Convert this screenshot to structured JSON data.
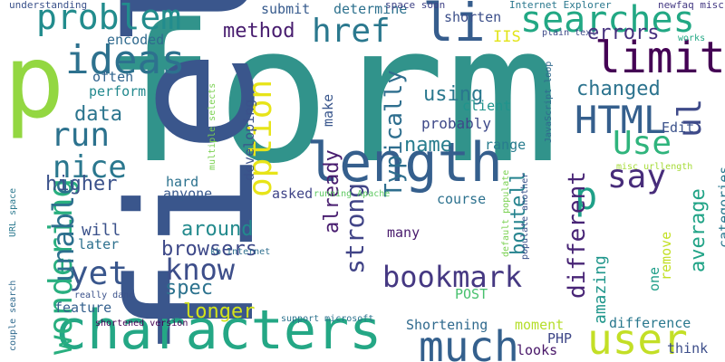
{
  "words": [
    {
      "text": "form",
      "color": "#31938b"
    },
    {
      "text": "field",
      "color": "#3a568c"
    },
    {
      "text": "p",
      "color": "#93d741"
    },
    {
      "text": "characters",
      "color": "#24a785"
    },
    {
      "text": "length",
      "color": "#355f8d"
    },
    {
      "text": "li",
      "color": "#365d8d"
    },
    {
      "text": "searches",
      "color": "#22a884"
    },
    {
      "text": "problem",
      "color": "#228c8d"
    },
    {
      "text": "limit",
      "color": "#440154"
    },
    {
      "text": "ideas",
      "color": "#2d718e"
    },
    {
      "text": "user",
      "color": "#c3df26"
    },
    {
      "text": "much",
      "color": "#34608d"
    },
    {
      "text": "HTML",
      "color": "#355f8d"
    },
    {
      "text": "p",
      "color": "#1fa088"
    },
    {
      "text": "say",
      "color": "#472c7a"
    },
    {
      "text": "href",
      "color": "#2a788e"
    },
    {
      "text": "yet",
      "color": "#39568c"
    },
    {
      "text": "run",
      "color": "#2c728e"
    },
    {
      "text": "Use",
      "color": "#2fb47c"
    },
    {
      "text": "ul",
      "color": "#3e4a89"
    },
    {
      "text": "option",
      "color": "#e7e419"
    },
    {
      "text": "wondering",
      "color": "#29af7f"
    },
    {
      "text": "nice",
      "color": "#2a778e"
    },
    {
      "text": "know",
      "color": "#3d4e8a"
    },
    {
      "text": "bookmark",
      "color": "#453882"
    },
    {
      "text": "unable",
      "color": "#2d708e"
    },
    {
      "text": "strong",
      "color": "#414487"
    },
    {
      "text": "method",
      "color": "#481d6f"
    },
    {
      "text": "errors",
      "color": "#46327e"
    },
    {
      "text": "changed",
      "color": "#2c738e"
    },
    {
      "text": "Typically",
      "color": "#2e6e8e"
    },
    {
      "text": "different",
      "color": "#482576"
    },
    {
      "text": "data",
      "color": "#2b758e"
    },
    {
      "text": "using",
      "color": "#2a788e"
    },
    {
      "text": "name",
      "color": "#287d8e"
    },
    {
      "text": "higher",
      "color": "#3b528b"
    },
    {
      "text": "around",
      "color": "#238a8d"
    },
    {
      "text": "browsers",
      "color": "#3e4989"
    },
    {
      "text": "spec",
      "color": "#2c728e"
    },
    {
      "text": "longer",
      "color": "#d2e21b"
    },
    {
      "text": "already",
      "color": "#481d6f"
    },
    {
      "text": "boutell",
      "color": "#25838e"
    },
    {
      "text": "average",
      "color": "#20a386"
    },
    {
      "text": "amazing",
      "color": "#1f968b"
    },
    {
      "text": "probably",
      "color": "#3e4989"
    },
    {
      "text": "will",
      "color": "#3b528b"
    },
    {
      "text": "perform",
      "color": "#23898e"
    },
    {
      "text": "encoded",
      "color": "#306a8e"
    },
    {
      "text": "submit",
      "color": "#375b8d"
    },
    {
      "text": "determine",
      "color": "#2d718e"
    },
    {
      "text": "shorten",
      "color": "#3c4f8a"
    },
    {
      "text": "IIS",
      "color": "#e2e418"
    },
    {
      "text": "client",
      "color": "#1f948c"
    },
    {
      "text": "make",
      "color": "#39568c"
    },
    {
      "text": "often",
      "color": "#32658e"
    },
    {
      "text": "range",
      "color": "#287c8e"
    },
    {
      "text": "Edit",
      "color": "#3b528b"
    },
    {
      "text": "course",
      "color": "#2c718e"
    },
    {
      "text": "asked",
      "color": "#404588"
    },
    {
      "text": "hard",
      "color": "#2c728e"
    },
    {
      "text": "anyone",
      "color": "#38588c"
    },
    {
      "text": "developing",
      "color": "#3b528b"
    },
    {
      "text": "many",
      "color": "#481a6c"
    },
    {
      "text": "feature",
      "color": "#34608d"
    },
    {
      "text": "later",
      "color": "#2d708e"
    },
    {
      "text": "Shortening",
      "color": "#306a8e"
    },
    {
      "text": "moment",
      "color": "#b5de2b"
    },
    {
      "text": "difference",
      "color": "#2a788e"
    },
    {
      "text": "think",
      "color": "#3d4e8a"
    },
    {
      "text": "looks",
      "color": "#481668"
    },
    {
      "text": "PHP",
      "color": "#3f4788"
    },
    {
      "text": "POST",
      "color": "#48c16e"
    },
    {
      "text": "categories",
      "color": "#2a788e"
    },
    {
      "text": "one",
      "color": "#1f9e89"
    },
    {
      "text": "remove",
      "color": "#c2df23"
    },
    {
      "text": "understanding",
      "color": "#3b528b"
    },
    {
      "text": "space soon",
      "color": "#414487"
    },
    {
      "text": "Internet Explorer",
      "color": "#2a788e"
    },
    {
      "text": "newfaq misc",
      "color": "#443983"
    },
    {
      "text": "plain text",
      "color": "#3e4a89"
    },
    {
      "text": "works",
      "color": "#22a884"
    },
    {
      "text": "JavaScript loop",
      "color": "#306a8e"
    },
    {
      "text": "populate another",
      "color": "#3b528b"
    },
    {
      "text": "default populate",
      "color": "#7ad151"
    },
    {
      "text": "running Apache",
      "color": "#5ec962"
    },
    {
      "text": "misc urllength",
      "color": "#a5db36"
    },
    {
      "text": "kb Internet",
      "color": "#2e6e8e"
    },
    {
      "text": "multiple selects",
      "color": "#7ad151"
    },
    {
      "text": "URL space",
      "color": "#2a788e"
    },
    {
      "text": "couple search",
      "color": "#306a8e"
    },
    {
      "text": "really dang",
      "color": "#3b528b"
    },
    {
      "text": "support microsoft",
      "color": "#2c728e"
    },
    {
      "text": "shortened version",
      "color": "#440154"
    }
  ]
}
